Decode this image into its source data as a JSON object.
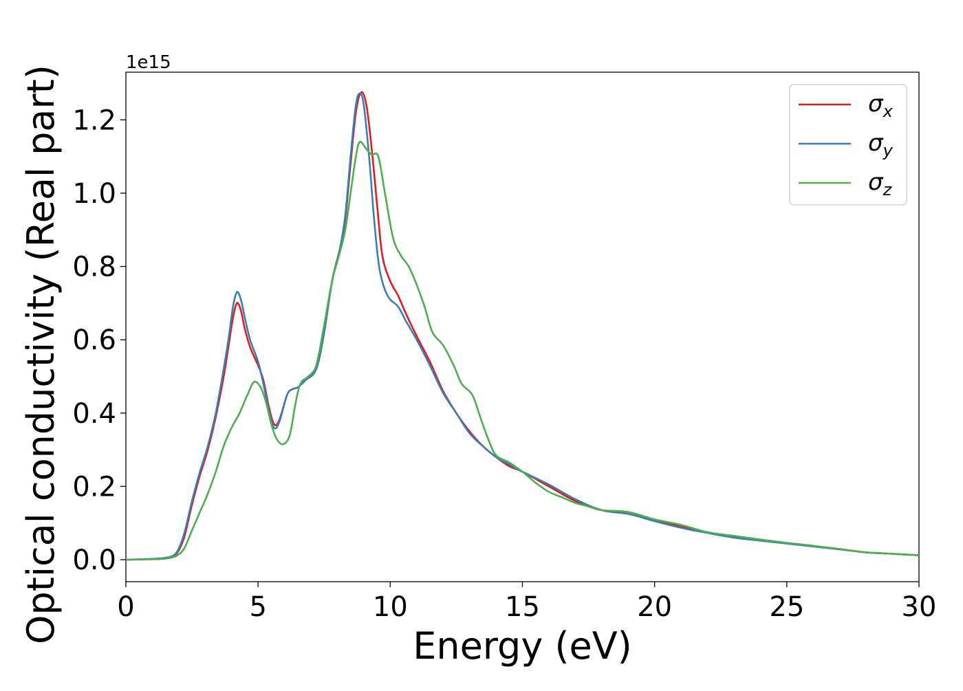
{
  "chart_data": {
    "type": "line",
    "title": "",
    "xlabel": "Energy (eV)",
    "ylabel": "Optical conductivity (Real part)",
    "y_offset_text": "1e15",
    "xlim": [
      0,
      30
    ],
    "ylim": [
      -0.06,
      1.33
    ],
    "xticks": [
      0,
      5,
      10,
      15,
      20,
      25,
      30
    ],
    "yticks": [
      0.0,
      0.2,
      0.4,
      0.6,
      0.8,
      1.0,
      1.2
    ],
    "xtick_labels": [
      "0",
      "5",
      "10",
      "15",
      "20",
      "25",
      "30"
    ],
    "ytick_labels": [
      "0.0",
      "0.2",
      "0.4",
      "0.6",
      "0.8",
      "1.0",
      "1.2"
    ],
    "grid": false,
    "legend_position": "top-right",
    "series": [
      {
        "name": "σx",
        "legend_symbol": "σ",
        "legend_subscript": "x",
        "color": "#e41a1c",
        "points": [
          [
            0,
            0
          ],
          [
            1,
            0.002
          ],
          [
            1.5,
            0.005
          ],
          [
            1.9,
            0.015
          ],
          [
            2.2,
            0.06
          ],
          [
            2.5,
            0.15
          ],
          [
            2.8,
            0.23
          ],
          [
            3.1,
            0.3
          ],
          [
            3.4,
            0.39
          ],
          [
            3.7,
            0.5
          ],
          [
            3.9,
            0.59
          ],
          [
            4.05,
            0.66
          ],
          [
            4.2,
            0.7
          ],
          [
            4.35,
            0.68
          ],
          [
            4.5,
            0.63
          ],
          [
            4.7,
            0.58
          ],
          [
            5.0,
            0.53
          ],
          [
            5.2,
            0.49
          ],
          [
            5.4,
            0.42
          ],
          [
            5.6,
            0.37
          ],
          [
            5.8,
            0.38
          ],
          [
            6.1,
            0.45
          ],
          [
            6.3,
            0.465
          ],
          [
            6.5,
            0.47
          ],
          [
            6.8,
            0.49
          ],
          [
            7.2,
            0.52
          ],
          [
            7.5,
            0.62
          ],
          [
            7.8,
            0.76
          ],
          [
            8.1,
            0.85
          ],
          [
            8.3,
            0.93
          ],
          [
            8.5,
            1.08
          ],
          [
            8.7,
            1.22
          ],
          [
            8.9,
            1.275
          ],
          [
            9.1,
            1.24
          ],
          [
            9.3,
            1.12
          ],
          [
            9.5,
            0.97
          ],
          [
            9.7,
            0.83
          ],
          [
            10.0,
            0.76
          ],
          [
            10.3,
            0.72
          ],
          [
            10.6,
            0.67
          ],
          [
            11.0,
            0.61
          ],
          [
            11.5,
            0.54
          ],
          [
            12.0,
            0.46
          ],
          [
            12.5,
            0.4
          ],
          [
            13.0,
            0.35
          ],
          [
            13.5,
            0.31
          ],
          [
            14.0,
            0.28
          ],
          [
            14.5,
            0.255
          ],
          [
            15.0,
            0.24
          ],
          [
            16.0,
            0.2
          ],
          [
            17.0,
            0.16
          ],
          [
            18.0,
            0.135
          ],
          [
            19.0,
            0.125
          ],
          [
            20.0,
            0.108
          ],
          [
            21.0,
            0.09
          ],
          [
            22.0,
            0.075
          ],
          [
            23.0,
            0.062
          ],
          [
            24.0,
            0.053
          ],
          [
            25.0,
            0.045
          ],
          [
            26.0,
            0.037
          ],
          [
            27.0,
            0.029
          ],
          [
            28.0,
            0.02
          ],
          [
            29.0,
            0.016
          ],
          [
            30.0,
            0.012
          ]
        ]
      },
      {
        "name": "σy",
        "legend_symbol": "σ",
        "legend_subscript": "y",
        "color": "#377eb8",
        "points": [
          [
            0,
            0
          ],
          [
            1,
            0.002
          ],
          [
            1.5,
            0.005
          ],
          [
            1.9,
            0.018
          ],
          [
            2.2,
            0.07
          ],
          [
            2.5,
            0.16
          ],
          [
            2.8,
            0.24
          ],
          [
            3.1,
            0.31
          ],
          [
            3.4,
            0.4
          ],
          [
            3.7,
            0.52
          ],
          [
            3.9,
            0.61
          ],
          [
            4.05,
            0.69
          ],
          [
            4.2,
            0.73
          ],
          [
            4.35,
            0.71
          ],
          [
            4.5,
            0.66
          ],
          [
            4.7,
            0.6
          ],
          [
            5.0,
            0.54
          ],
          [
            5.2,
            0.48
          ],
          [
            5.4,
            0.41
          ],
          [
            5.6,
            0.36
          ],
          [
            5.8,
            0.375
          ],
          [
            6.1,
            0.45
          ],
          [
            6.3,
            0.465
          ],
          [
            6.5,
            0.47
          ],
          [
            6.8,
            0.49
          ],
          [
            7.2,
            0.52
          ],
          [
            7.5,
            0.62
          ],
          [
            7.8,
            0.76
          ],
          [
            8.1,
            0.85
          ],
          [
            8.3,
            0.94
          ],
          [
            8.5,
            1.1
          ],
          [
            8.7,
            1.24
          ],
          [
            8.85,
            1.272
          ],
          [
            9.0,
            1.24
          ],
          [
            9.2,
            1.1
          ],
          [
            9.4,
            0.92
          ],
          [
            9.6,
            0.79
          ],
          [
            9.9,
            0.72
          ],
          [
            10.3,
            0.69
          ],
          [
            10.6,
            0.65
          ],
          [
            11.0,
            0.6
          ],
          [
            11.5,
            0.53
          ],
          [
            12.0,
            0.455
          ],
          [
            12.5,
            0.4
          ],
          [
            13.0,
            0.345
          ],
          [
            13.5,
            0.31
          ],
          [
            14.0,
            0.28
          ],
          [
            14.5,
            0.26
          ],
          [
            15.0,
            0.24
          ],
          [
            16.0,
            0.205
          ],
          [
            17.0,
            0.165
          ],
          [
            18.0,
            0.135
          ],
          [
            19.0,
            0.125
          ],
          [
            20.0,
            0.105
          ],
          [
            21.0,
            0.087
          ],
          [
            22.0,
            0.073
          ],
          [
            23.0,
            0.06
          ],
          [
            24.0,
            0.052
          ],
          [
            25.0,
            0.044
          ],
          [
            26.0,
            0.036
          ],
          [
            27.0,
            0.028
          ],
          [
            28.0,
            0.02
          ],
          [
            29.0,
            0.016
          ],
          [
            30.0,
            0.012
          ]
        ]
      },
      {
        "name": "σz",
        "legend_symbol": "σ",
        "legend_subscript": "z",
        "color": "#4daf4a",
        "points": [
          [
            0,
            0
          ],
          [
            1,
            0.001
          ],
          [
            1.5,
            0.003
          ],
          [
            1.9,
            0.01
          ],
          [
            2.2,
            0.03
          ],
          [
            2.5,
            0.08
          ],
          [
            2.8,
            0.13
          ],
          [
            3.1,
            0.18
          ],
          [
            3.4,
            0.24
          ],
          [
            3.7,
            0.31
          ],
          [
            4.0,
            0.36
          ],
          [
            4.3,
            0.4
          ],
          [
            4.6,
            0.45
          ],
          [
            4.85,
            0.485
          ],
          [
            5.1,
            0.47
          ],
          [
            5.3,
            0.43
          ],
          [
            5.5,
            0.37
          ],
          [
            5.7,
            0.33
          ],
          [
            5.95,
            0.315
          ],
          [
            6.2,
            0.34
          ],
          [
            6.4,
            0.42
          ],
          [
            6.6,
            0.48
          ],
          [
            6.9,
            0.5
          ],
          [
            7.2,
            0.53
          ],
          [
            7.5,
            0.64
          ],
          [
            7.8,
            0.76
          ],
          [
            8.1,
            0.84
          ],
          [
            8.3,
            0.9
          ],
          [
            8.5,
            1.0
          ],
          [
            8.7,
            1.1
          ],
          [
            8.85,
            1.14
          ],
          [
            9.1,
            1.12
          ],
          [
            9.3,
            1.105
          ],
          [
            9.55,
            1.1
          ],
          [
            9.8,
            1.0
          ],
          [
            10.1,
            0.88
          ],
          [
            10.4,
            0.83
          ],
          [
            10.7,
            0.8
          ],
          [
            11.0,
            0.75
          ],
          [
            11.3,
            0.69
          ],
          [
            11.6,
            0.62
          ],
          [
            12.0,
            0.585
          ],
          [
            12.4,
            0.53
          ],
          [
            12.7,
            0.48
          ],
          [
            13.1,
            0.45
          ],
          [
            13.4,
            0.39
          ],
          [
            13.7,
            0.33
          ],
          [
            14.0,
            0.285
          ],
          [
            14.5,
            0.265
          ],
          [
            15.0,
            0.24
          ],
          [
            15.5,
            0.21
          ],
          [
            16.0,
            0.185
          ],
          [
            16.5,
            0.17
          ],
          [
            17.0,
            0.155
          ],
          [
            17.5,
            0.145
          ],
          [
            18.0,
            0.135
          ],
          [
            19.0,
            0.13
          ],
          [
            20.0,
            0.11
          ],
          [
            21.0,
            0.095
          ],
          [
            22.0,
            0.075
          ],
          [
            23.0,
            0.065
          ],
          [
            24.0,
            0.055
          ],
          [
            25.0,
            0.046
          ],
          [
            26.0,
            0.038
          ],
          [
            27.0,
            0.029
          ],
          [
            28.0,
            0.02
          ],
          [
            29.0,
            0.016
          ],
          [
            30.0,
            0.012
          ]
        ]
      }
    ]
  }
}
